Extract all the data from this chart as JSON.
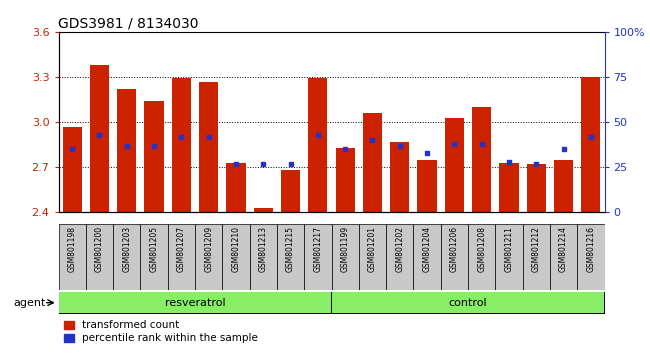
{
  "title": "GDS3981 / 8134030",
  "samples": [
    "GSM801198",
    "GSM801200",
    "GSM801203",
    "GSM801205",
    "GSM801207",
    "GSM801209",
    "GSM801210",
    "GSM801213",
    "GSM801215",
    "GSM801217",
    "GSM801199",
    "GSM801201",
    "GSM801202",
    "GSM801204",
    "GSM801206",
    "GSM801208",
    "GSM801211",
    "GSM801212",
    "GSM801214",
    "GSM801216"
  ],
  "n_resveratrol": 10,
  "transformed_count": [
    2.97,
    3.38,
    3.22,
    3.14,
    3.29,
    3.27,
    2.73,
    2.43,
    2.68,
    3.29,
    2.83,
    3.06,
    2.87,
    2.75,
    3.03,
    3.1,
    2.73,
    2.72,
    2.75,
    3.3
  ],
  "percentile_rank": [
    35,
    43,
    37,
    37,
    42,
    42,
    27,
    27,
    27,
    43,
    35,
    40,
    37,
    33,
    38,
    38,
    28,
    27,
    35,
    42
  ],
  "y_min": 2.4,
  "y_max": 3.6,
  "y_ticks": [
    2.4,
    2.7,
    3.0,
    3.3,
    3.6
  ],
  "right_y_ticks": [
    0,
    25,
    50,
    75,
    100
  ],
  "right_y_labels": [
    "0",
    "25",
    "50",
    "75",
    "100%"
  ],
  "bar_color": "#cc2200",
  "dot_color": "#2233cc",
  "bar_bg_color": "#c8c8c8",
  "xlabel_color": "#cc2200",
  "right_axis_color": "#2233cc",
  "tick_label_bg": "#c8c8c8",
  "group_fill_color": "#88ee66",
  "group_border_color": "#000000",
  "legend_items": [
    {
      "color": "#cc2200",
      "label": "transformed count"
    },
    {
      "color": "#2233cc",
      "label": "percentile rank within the sample"
    }
  ],
  "agent_label": "agent"
}
